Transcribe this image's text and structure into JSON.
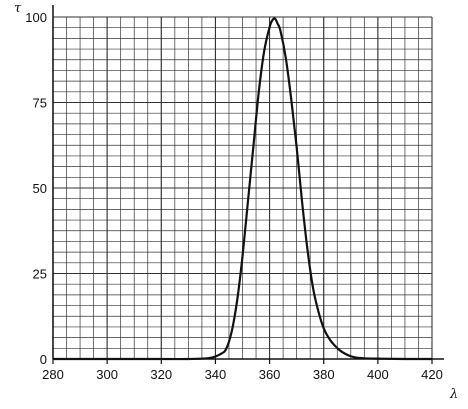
{
  "chart_data": {
    "type": "line",
    "xlabel": "λ",
    "ylabel": "τ",
    "xlim": [
      280,
      420
    ],
    "ylim": [
      0,
      100
    ],
    "x_ticks": [
      280,
      300,
      320,
      340,
      360,
      380,
      400,
      420
    ],
    "y_ticks": [
      0,
      25,
      50,
      75,
      100
    ],
    "grid": true,
    "grid_minor": {
      "x_step": 5,
      "y_step": 3.125
    },
    "colors": {
      "line": "#111111",
      "grid": "#333333",
      "axis": "#111111",
      "background": "#ffffff"
    },
    "series": [
      {
        "x": [
          280,
          300,
          320,
          330,
          338,
          342,
          344,
          346,
          348,
          350,
          352,
          354,
          356,
          358,
          360,
          361,
          362,
          363,
          364,
          366,
          368,
          370,
          372,
          374,
          376,
          378,
          380,
          382,
          384,
          386,
          388,
          390,
          392,
          395,
          400,
          410,
          420
        ],
        "y": [
          0,
          0,
          0,
          0,
          0.3,
          1.5,
          3,
          8,
          17,
          30,
          46,
          62,
          78,
          90,
          97,
          99,
          99.5,
          98,
          96,
          88,
          76,
          62,
          46,
          32,
          21,
          14,
          9,
          6,
          4,
          2.5,
          1.5,
          0.8,
          0.4,
          0.2,
          0.1,
          0,
          0
        ]
      }
    ]
  }
}
